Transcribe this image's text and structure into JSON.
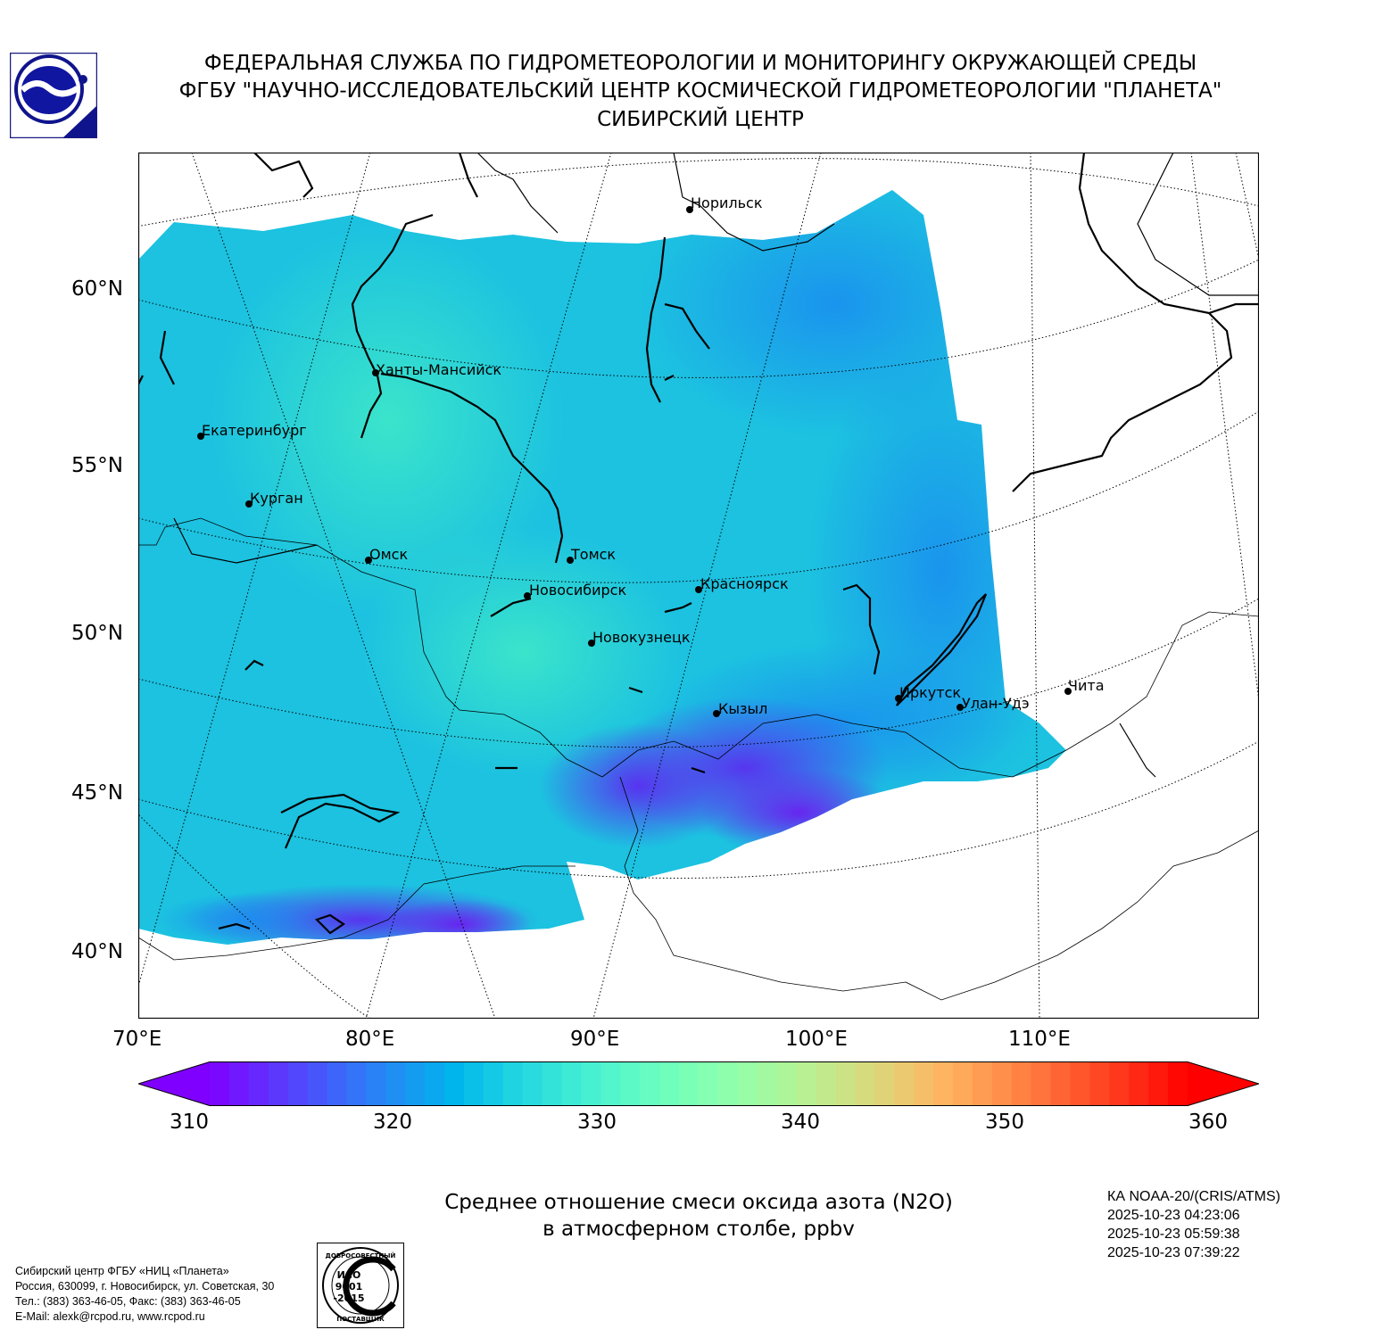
{
  "header": {
    "line1": "ФЕДЕРАЛЬНАЯ СЛУЖБА ПО ГИДРОМЕТЕОРОЛОГИИ И МОНИТОРИНГУ ОКРУЖАЮЩЕЙ СРЕДЫ",
    "line2": "ФГБУ \"НАУЧНО-ИССЛЕДОВАТЕЛЬСКИЙ ЦЕНТР КОСМИЧЕСКОЙ ГИДРОМЕТЕОРОЛОГИИ \"ПЛАНЕТА\"",
    "line3": "СИБИРСКИЙ ЦЕНТР"
  },
  "map": {
    "lat_labels": [
      "60°N",
      "55°N",
      "50°N",
      "45°N",
      "40°N"
    ],
    "lon_labels": [
      "70°E",
      "80°E",
      "90°E",
      "100°E",
      "110°E"
    ],
    "cities": [
      "Норильск",
      "Ханты-Мансийск",
      "Екатеринбург",
      "Курган",
      "Омск",
      "Томск",
      "Новосибирск",
      "Красноярск",
      "Новокузнецк",
      "Иркутск",
      "Улан-Удэ",
      "Кызыл",
      "Чита"
    ]
  },
  "colorbar": {
    "min": 310,
    "max": 360,
    "ticks": [
      "310",
      "320",
      "330",
      "340",
      "350",
      "360"
    ],
    "colormap": "rainbow",
    "extend": "both"
  },
  "title": {
    "line1": "Среднее отношение смеси оксида азота (N2O)",
    "line2": "в атмосферном столбе, ppbv"
  },
  "satellite": {
    "name": "КА NOAA-20/(CRIS/ATMS)",
    "times": [
      "2025-10-23 04:23:06",
      "2025-10-23 05:59:38",
      "2025-10-23 07:39:22"
    ]
  },
  "footer": {
    "lines": [
      "Сибирский центр ФГБУ «НИЦ «Планета»",
      "Россия, 630099, г. Новосибирск, ул. Советская, 30",
      "Тел.: (383) 363-46-05, Факс: (383) 363-46-05",
      "E-Mail: alexk@rcpod.ru, www.rcpod.ru"
    ],
    "iso_badge": {
      "top": "ДОБРОСОВЕСТНЫЙ",
      "l1": "ИСО",
      "l2": "9001",
      "l3": "-2015",
      "bottom": "ПОСТАВЩИК"
    }
  }
}
